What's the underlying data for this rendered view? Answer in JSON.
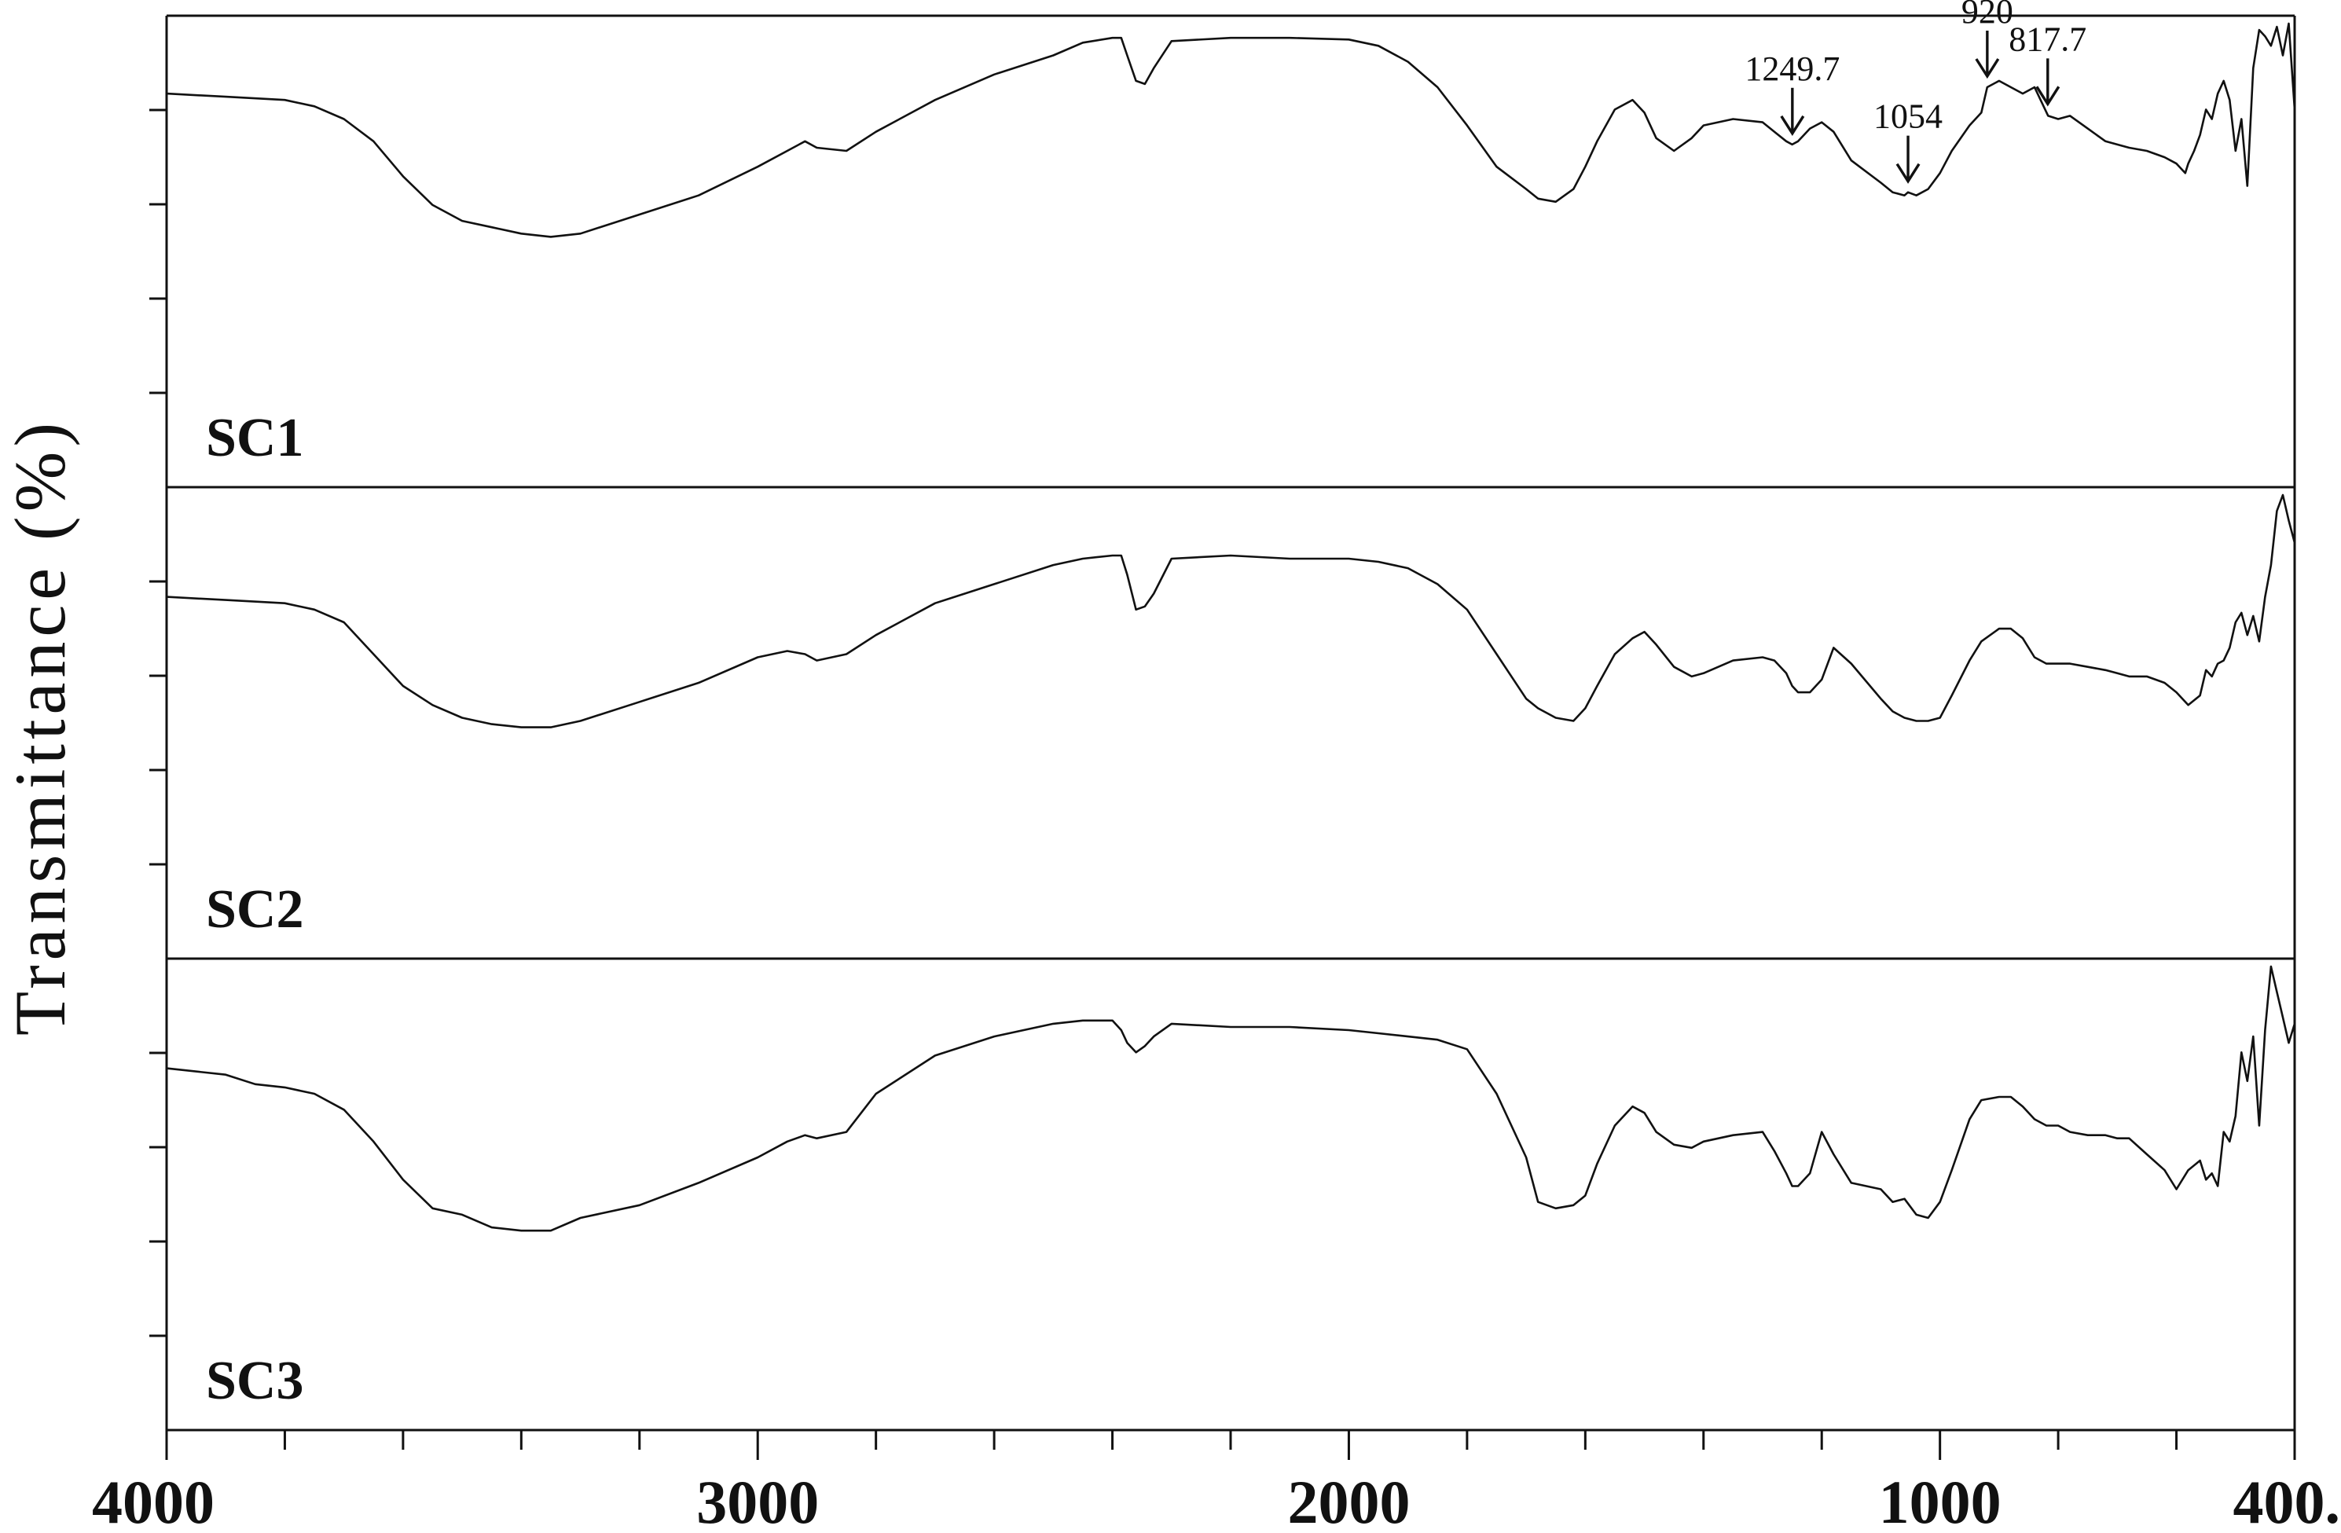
{
  "chart_data": {
    "type": "line",
    "title": "",
    "xlabel": "",
    "ylabel": "Transmittance (%)",
    "xlim": [
      4000,
      400
    ],
    "x_ticks": [
      4000,
      3000,
      2000,
      1000,
      400
    ],
    "x_tick_labels": [
      "4000",
      "3000",
      "2000",
      "1000",
      "400."
    ],
    "y_units": "relative transmittance (0 = panel bottom, 1 = panel top)",
    "series": [
      {
        "name": "SC1",
        "x": [
          4000,
          3900,
          3800,
          3750,
          3700,
          3650,
          3600,
          3550,
          3500,
          3450,
          3400,
          3350,
          3300,
          3200,
          3100,
          3000,
          2950,
          2920,
          2900,
          2850,
          2800,
          2700,
          2600,
          2500,
          2450,
          2400,
          2385,
          2375,
          2360,
          2345,
          2330,
          2300,
          2200,
          2100,
          2000,
          1950,
          1900,
          1850,
          1800,
          1750,
          1700,
          1680,
          1650,
          1620,
          1600,
          1580,
          1550,
          1520,
          1500,
          1480,
          1450,
          1420,
          1400,
          1350,
          1300,
          1280,
          1260,
          1250,
          1240,
          1220,
          1200,
          1180,
          1150,
          1100,
          1080,
          1060,
          1054,
          1040,
          1020,
          1000,
          980,
          950,
          930,
          920,
          900,
          880,
          860,
          840,
          817,
          800,
          780,
          750,
          720,
          700,
          680,
          650,
          620,
          600,
          585,
          580,
          570,
          560,
          550,
          540,
          530,
          520,
          510,
          500,
          490,
          480,
          470,
          460,
          450,
          440,
          430,
          420,
          410,
          400
        ],
        "y": [
          0.78,
          0.77,
          0.76,
          0.74,
          0.7,
          0.63,
          0.52,
          0.43,
          0.38,
          0.36,
          0.34,
          0.33,
          0.34,
          0.4,
          0.46,
          0.55,
          0.6,
          0.63,
          0.61,
          0.6,
          0.66,
          0.76,
          0.84,
          0.9,
          0.94,
          0.955,
          0.955,
          0.9,
          0.82,
          0.81,
          0.86,
          0.945,
          0.955,
          0.955,
          0.95,
          0.93,
          0.88,
          0.8,
          0.68,
          0.55,
          0.48,
          0.45,
          0.44,
          0.48,
          0.55,
          0.63,
          0.73,
          0.76,
          0.72,
          0.64,
          0.6,
          0.64,
          0.68,
          0.7,
          0.69,
          0.66,
          0.63,
          0.62,
          0.63,
          0.67,
          0.69,
          0.66,
          0.57,
          0.5,
          0.47,
          0.46,
          0.47,
          0.46,
          0.48,
          0.53,
          0.6,
          0.68,
          0.72,
          0.8,
          0.82,
          0.8,
          0.78,
          0.8,
          0.71,
          0.7,
          0.71,
          0.67,
          0.63,
          0.62,
          0.61,
          0.6,
          0.58,
          0.56,
          0.53,
          0.56,
          0.6,
          0.65,
          0.73,
          0.7,
          0.78,
          0.82,
          0.76,
          0.6,
          0.7,
          0.49,
          0.86,
          0.98,
          0.96,
          0.93,
          0.99,
          0.9,
          1.0,
          0.73
        ]
      },
      {
        "name": "SC2",
        "x": [
          4000,
          3900,
          3800,
          3750,
          3700,
          3650,
          3600,
          3550,
          3500,
          3450,
          3400,
          3350,
          3300,
          3200,
          3100,
          3000,
          2950,
          2920,
          2900,
          2850,
          2800,
          2700,
          2600,
          2500,
          2450,
          2400,
          2385,
          2375,
          2360,
          2345,
          2330,
          2300,
          2200,
          2100,
          2000,
          1950,
          1900,
          1850,
          1800,
          1750,
          1700,
          1680,
          1650,
          1620,
          1600,
          1580,
          1550,
          1520,
          1500,
          1480,
          1450,
          1420,
          1400,
          1350,
          1300,
          1280,
          1260,
          1250,
          1240,
          1220,
          1200,
          1180,
          1150,
          1100,
          1080,
          1060,
          1040,
          1020,
          1000,
          980,
          950,
          930,
          900,
          880,
          860,
          840,
          820,
          800,
          780,
          750,
          720,
          700,
          680,
          650,
          620,
          600,
          580,
          560,
          550,
          540,
          530,
          520,
          510,
          500,
          490,
          480,
          470,
          460,
          450,
          440,
          430,
          420,
          410,
          400
        ],
        "y": [
          0.68,
          0.67,
          0.66,
          0.64,
          0.6,
          0.5,
          0.4,
          0.34,
          0.3,
          0.28,
          0.27,
          0.27,
          0.29,
          0.35,
          0.41,
          0.49,
          0.51,
          0.5,
          0.48,
          0.5,
          0.56,
          0.66,
          0.72,
          0.78,
          0.8,
          0.81,
          0.81,
          0.75,
          0.64,
          0.65,
          0.69,
          0.8,
          0.81,
          0.8,
          0.8,
          0.79,
          0.77,
          0.72,
          0.64,
          0.5,
          0.36,
          0.33,
          0.3,
          0.29,
          0.33,
          0.4,
          0.5,
          0.55,
          0.57,
          0.53,
          0.46,
          0.43,
          0.44,
          0.48,
          0.49,
          0.48,
          0.44,
          0.4,
          0.38,
          0.38,
          0.42,
          0.52,
          0.47,
          0.36,
          0.32,
          0.3,
          0.29,
          0.29,
          0.3,
          0.37,
          0.48,
          0.54,
          0.58,
          0.58,
          0.55,
          0.49,
          0.47,
          0.47,
          0.47,
          0.46,
          0.45,
          0.44,
          0.43,
          0.43,
          0.41,
          0.38,
          0.34,
          0.37,
          0.45,
          0.43,
          0.47,
          0.48,
          0.52,
          0.6,
          0.63,
          0.56,
          0.62,
          0.54,
          0.68,
          0.78,
          0.95,
          1.0,
          0.92,
          0.85
        ]
      },
      {
        "name": "SC3",
        "x": [
          4000,
          3900,
          3850,
          3800,
          3750,
          3700,
          3650,
          3600,
          3550,
          3500,
          3450,
          3400,
          3350,
          3300,
          3200,
          3100,
          3000,
          2950,
          2920,
          2900,
          2850,
          2800,
          2700,
          2600,
          2500,
          2450,
          2400,
          2385,
          2375,
          2360,
          2345,
          2330,
          2300,
          2200,
          2100,
          2000,
          1950,
          1900,
          1850,
          1800,
          1750,
          1700,
          1680,
          1650,
          1620,
          1600,
          1580,
          1550,
          1520,
          1500,
          1480,
          1450,
          1420,
          1400,
          1350,
          1300,
          1280,
          1260,
          1250,
          1240,
          1220,
          1200,
          1180,
          1150,
          1100,
          1080,
          1060,
          1040,
          1020,
          1000,
          980,
          950,
          930,
          900,
          880,
          860,
          840,
          820,
          800,
          780,
          750,
          720,
          700,
          680,
          650,
          620,
          600,
          580,
          560,
          550,
          540,
          530,
          520,
          510,
          500,
          490,
          480,
          470,
          460,
          450,
          440,
          430,
          420,
          410,
          400
        ],
        "y": [
          0.68,
          0.66,
          0.63,
          0.62,
          0.6,
          0.55,
          0.45,
          0.33,
          0.24,
          0.22,
          0.18,
          0.17,
          0.17,
          0.21,
          0.25,
          0.32,
          0.4,
          0.45,
          0.47,
          0.46,
          0.48,
          0.6,
          0.72,
          0.78,
          0.82,
          0.83,
          0.83,
          0.8,
          0.76,
          0.73,
          0.75,
          0.78,
          0.82,
          0.81,
          0.81,
          0.8,
          0.79,
          0.78,
          0.77,
          0.74,
          0.6,
          0.4,
          0.26,
          0.24,
          0.25,
          0.28,
          0.38,
          0.5,
          0.56,
          0.54,
          0.48,
          0.44,
          0.43,
          0.45,
          0.47,
          0.48,
          0.42,
          0.35,
          0.31,
          0.31,
          0.35,
          0.48,
          0.41,
          0.32,
          0.3,
          0.26,
          0.27,
          0.22,
          0.21,
          0.26,
          0.36,
          0.52,
          0.58,
          0.59,
          0.59,
          0.56,
          0.52,
          0.5,
          0.5,
          0.48,
          0.47,
          0.47,
          0.46,
          0.46,
          0.41,
          0.36,
          0.3,
          0.36,
          0.39,
          0.33,
          0.35,
          0.31,
          0.48,
          0.45,
          0.53,
          0.73,
          0.64,
          0.78,
          0.5,
          0.8,
          1.0,
          0.92,
          0.84,
          0.76,
          0.82
        ]
      }
    ],
    "annotations": [
      {
        "series": "SC1",
        "x": 1249.7,
        "label": "1249.7"
      },
      {
        "series": "SC1",
        "x": 1054,
        "label": "1054"
      },
      {
        "series": "SC1",
        "x": 920,
        "label": "920"
      },
      {
        "series": "SC1",
        "x": 817.7,
        "label": "817.7"
      }
    ],
    "legend": "none",
    "grid": false
  },
  "colors": {
    "line": "#111111",
    "background": "#ffffff"
  }
}
